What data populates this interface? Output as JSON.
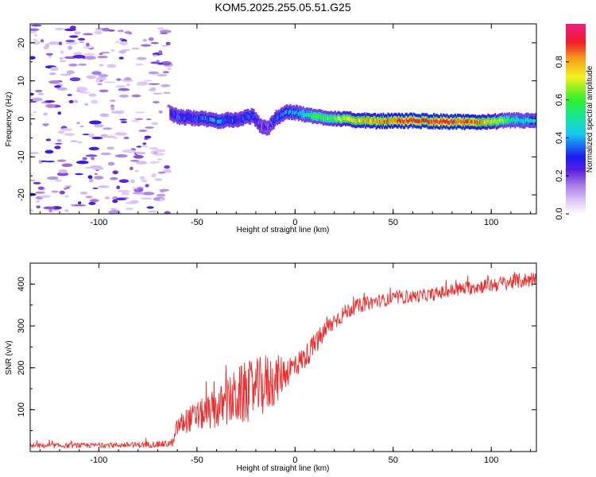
{
  "title": "KOM5.2025.255.05.51.G25",
  "chart_data": [
    {
      "type": "heatmap",
      "title": "KOM5.2025.255.05.51.G25",
      "xlabel": "Height of straight line (km)",
      "ylabel": "Frequency (Hz)",
      "xlim": [
        -135,
        123
      ],
      "ylim": [
        -25,
        25
      ],
      "xticks": [
        -100,
        -50,
        0,
        50,
        100
      ],
      "yticks": [
        -20,
        -10,
        0,
        10,
        20
      ],
      "colorbar": {
        "label": "Normalized spectral amplitude",
        "range": [
          0.0,
          1.0
        ],
        "ticks": [
          0.0,
          0.2,
          0.4,
          0.6,
          0.8
        ]
      },
      "noise_region_x": [
        -135,
        -64
      ],
      "ridge": {
        "description": "Doppler frequency ridge",
        "x": [
          -64,
          -60,
          -50,
          -40,
          -30,
          -22,
          -18,
          -14,
          -10,
          -5,
          0,
          10,
          20,
          30,
          40,
          50,
          60,
          70,
          80,
          90,
          100,
          110,
          123
        ],
        "frequency": [
          1.5,
          0.5,
          0.2,
          -0.5,
          -0.2,
          0.8,
          -1.8,
          -2.5,
          0.3,
          1.8,
          1.6,
          0.6,
          0.1,
          -0.3,
          -0.6,
          -0.5,
          -0.5,
          -0.6,
          -0.8,
          -0.9,
          -0.7,
          -0.4,
          -0.5
        ],
        "amplitude": [
          0.25,
          0.3,
          0.3,
          0.35,
          0.3,
          0.3,
          0.2,
          0.2,
          0.3,
          0.35,
          0.4,
          0.55,
          0.62,
          0.75,
          0.8,
          0.85,
          0.9,
          0.88,
          0.9,
          0.85,
          0.7,
          0.5,
          0.4
        ]
      }
    },
    {
      "type": "line",
      "xlabel": "Height of straight line (km)",
      "ylabel": "SNR (v/v)",
      "xlim": [
        -135,
        123
      ],
      "ylim": [
        0,
        450
      ],
      "xticks": [
        -100,
        -50,
        0,
        50,
        100
      ],
      "yticks": [
        100,
        200,
        300,
        400
      ],
      "series": [
        {
          "name": "SNR",
          "color": "#ef2b2b",
          "x": [
            -135,
            -120,
            -100,
            -80,
            -65,
            -62,
            -60,
            -55,
            -50,
            -45,
            -40,
            -35,
            -30,
            -25,
            -20,
            -15,
            -10,
            -5,
            0,
            5,
            10,
            15,
            20,
            25,
            30,
            40,
            50,
            60,
            70,
            80,
            90,
            100,
            110,
            123
          ],
          "mean": [
            14,
            14,
            15,
            16,
            18,
            22,
            60,
            75,
            85,
            92,
            102,
            115,
            130,
            140,
            150,
            160,
            170,
            190,
            205,
            225,
            255,
            285,
            312,
            330,
            345,
            358,
            365,
            370,
            375,
            385,
            392,
            398,
            405,
            412
          ],
          "spread": [
            6,
            6,
            6,
            7,
            8,
            10,
            25,
            30,
            35,
            40,
            50,
            55,
            70,
            75,
            70,
            75,
            60,
            40,
            30,
            28,
            28,
            25,
            22,
            20,
            18,
            16,
            15,
            15,
            15,
            16,
            17,
            18,
            18,
            18
          ]
        }
      ]
    }
  ]
}
